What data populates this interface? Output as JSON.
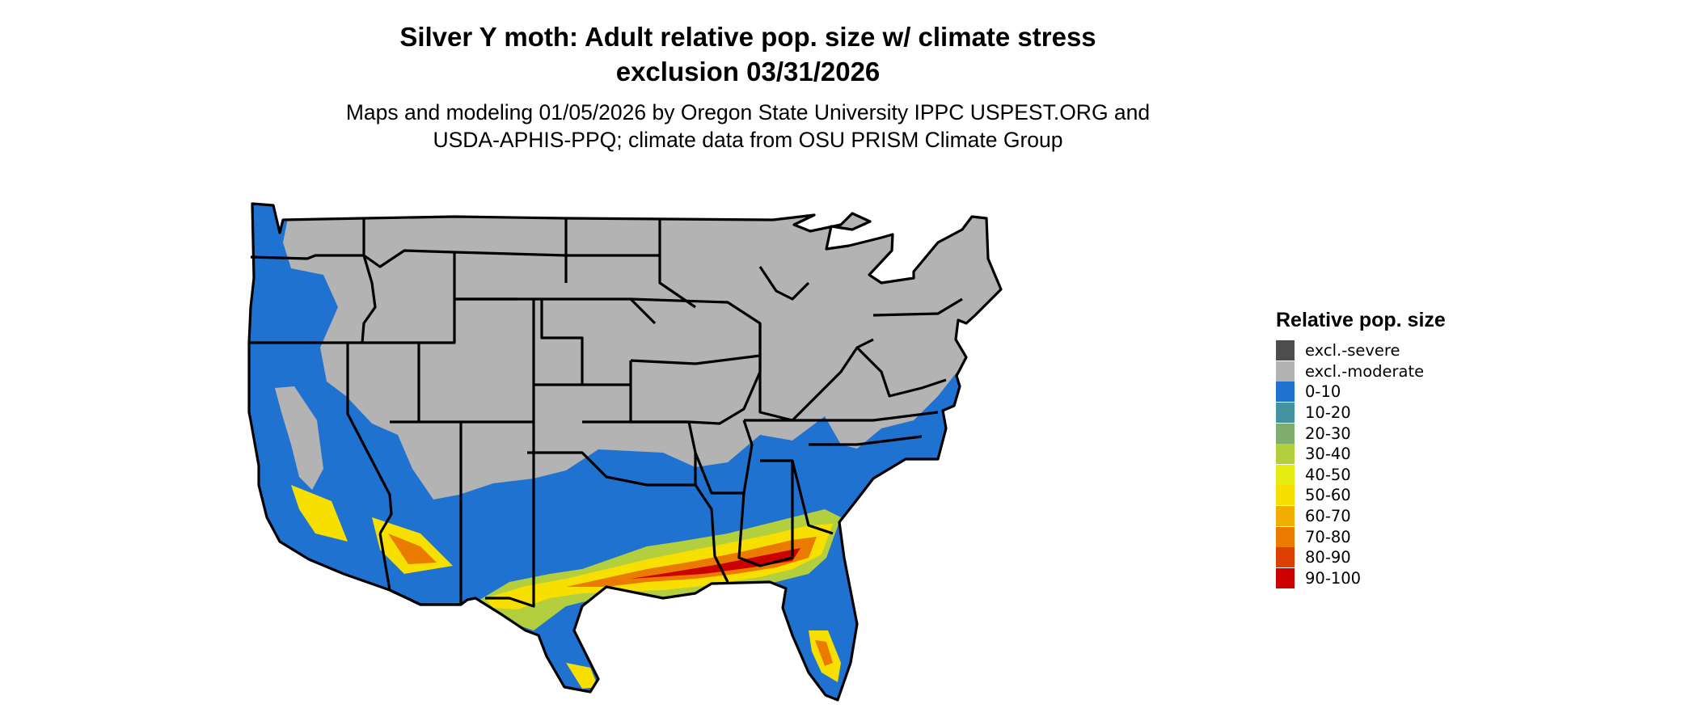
{
  "title": {
    "line1": "Silver Y moth: Adult relative pop. size w/ climate stress",
    "line2": "exclusion 03/31/2026"
  },
  "subtitle": {
    "line1": "Maps and modeling 01/05/2026 by Oregon State University IPPC USPEST.ORG and",
    "line2": "USDA-APHIS-PPQ; climate data from OSU PRISM Climate Group"
  },
  "legend": {
    "title": "Relative pop. size",
    "items": [
      {
        "label": "excl.-severe",
        "color": "#4d4d4d"
      },
      {
        "label": "excl.-moderate",
        "color": "#b3b3b3"
      },
      {
        "label": "0-10",
        "color": "#1f72cf"
      },
      {
        "label": "10-20",
        "color": "#4493a1"
      },
      {
        "label": "20-30",
        "color": "#7fad6e"
      },
      {
        "label": "30-40",
        "color": "#b3cf3d"
      },
      {
        "label": "40-50",
        "color": "#e4ec10"
      },
      {
        "label": "50-60",
        "color": "#f7e000"
      },
      {
        "label": "60-70",
        "color": "#f2ae00"
      },
      {
        "label": "70-80",
        "color": "#eb7a00"
      },
      {
        "label": "80-90",
        "color": "#dd3f00"
      },
      {
        "label": "90-100",
        "color": "#cd0000"
      }
    ]
  },
  "map": {
    "region": "Contiguous United States",
    "bands": [
      {
        "name": "excl-moderate-north",
        "label": "excl.-moderate",
        "color": "#b3b3b3"
      },
      {
        "name": "band-0-10",
        "label": "0-10",
        "color": "#1f72cf"
      },
      {
        "name": "band-30-40",
        "label": "30-40",
        "color": "#b3cf3d"
      },
      {
        "name": "band-50-60",
        "label": "50-60",
        "color": "#f7e000"
      },
      {
        "name": "band-70-80",
        "label": "70-80",
        "color": "#eb7a00"
      },
      {
        "name": "band-90-100",
        "label": "90-100",
        "color": "#cd0000"
      }
    ]
  }
}
